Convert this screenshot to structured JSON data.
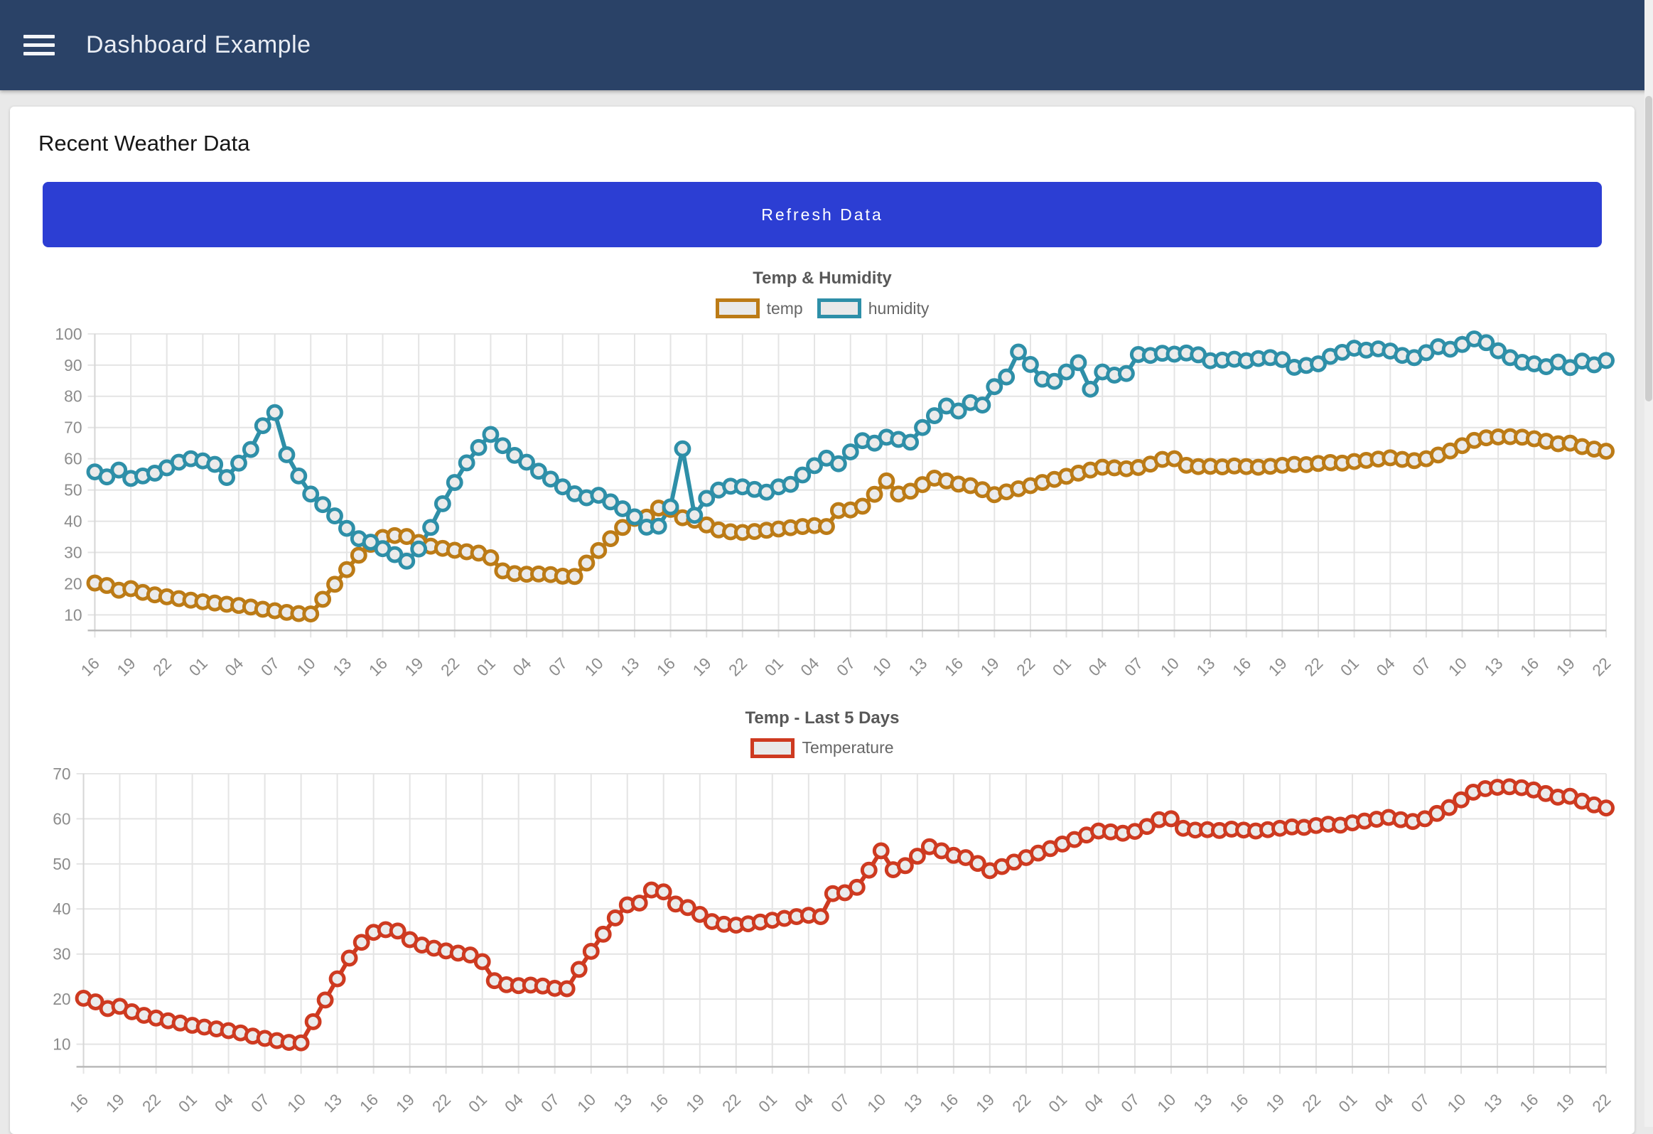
{
  "header": {
    "title": "Dashboard Example",
    "menu_icon": "hamburger-icon"
  },
  "page": {
    "heading": "Recent Weather Data",
    "refresh_button_label": "Refresh Data"
  },
  "colors": {
    "header_bg": "#2a4267",
    "button_bg": "#2c3ed3",
    "temp": "#bc7b16",
    "humidity": "#2e8fa8",
    "temperature_red": "#ce3a20",
    "grid": "#e4e4e4",
    "axis_border": "#b9b9b9",
    "point_fill": "#ebebeb",
    "title_text": "#585858",
    "axis_text": "#8c8c8c"
  },
  "chart_data": [
    {
      "type": "line",
      "title": "Temp & Humidity",
      "legend_position": "top",
      "grid": true,
      "ylim": [
        5,
        100
      ],
      "yticks": [
        10,
        20,
        30,
        40,
        50,
        60,
        70,
        80,
        90,
        100
      ],
      "x_tick_every": 3,
      "x_tick_labels": [
        "16",
        "19",
        "22",
        "01",
        "04",
        "07",
        "10",
        "13",
        "16",
        "19",
        "22",
        "01",
        "04",
        "07",
        "10",
        "13",
        "16",
        "19",
        "22",
        "01",
        "04",
        "07",
        "10",
        "13",
        "16",
        "19",
        "22",
        "01",
        "04",
        "07",
        "10",
        "13",
        "16",
        "19",
        "22",
        "01",
        "04",
        "07",
        "10",
        "13",
        "16",
        "19",
        "22"
      ],
      "legend": [
        {
          "label": "temp",
          "color": "#bc7b16"
        },
        {
          "label": "humidity",
          "color": "#2e8fa8"
        }
      ],
      "series": [
        {
          "name": "temp",
          "color": "#bc7b16",
          "values": [
            20.2,
            19.4,
            17.9,
            18.4,
            17.2,
            16.4,
            15.8,
            15.2,
            14.7,
            14.2,
            13.8,
            13.4,
            13.0,
            12.5,
            11.8,
            11.3,
            10.8,
            10.4,
            10.3,
            15.0,
            19.8,
            24.5,
            29.1,
            32.6,
            34.8,
            35.4,
            35.1,
            33.2,
            32.0,
            31.3,
            30.7,
            30.2,
            29.8,
            28.3,
            24.1,
            23.2,
            23.0,
            23.1,
            22.9,
            22.4,
            22.3,
            26.6,
            30.6,
            34.4,
            38.0,
            40.9,
            41.3,
            44.2,
            43.8,
            41.1,
            40.3,
            38.8,
            37.2,
            36.6,
            36.4,
            36.7,
            37.1,
            37.5,
            37.9,
            38.3,
            38.6,
            38.3,
            43.4,
            43.6,
            44.8,
            48.6,
            52.9,
            48.7,
            49.6,
            51.7,
            53.8,
            52.9,
            51.9,
            51.4,
            50.1,
            48.5,
            49.4,
            50.4,
            51.4,
            52.4,
            53.4,
            54.4,
            55.4,
            56.4,
            57.3,
            57.1,
            56.8,
            57.2,
            58.3,
            59.8,
            60.0,
            57.9,
            57.5,
            57.6,
            57.4,
            57.7,
            57.5,
            57.3,
            57.6,
            57.9,
            58.2,
            58.1,
            58.5,
            58.8,
            58.6,
            59.1,
            59.5,
            59.9,
            60.3,
            59.8,
            59.4,
            60.0,
            61.2,
            62.5,
            64.2,
            65.9,
            66.7,
            67.0,
            67.1,
            66.9,
            66.4,
            65.6,
            64.8,
            65.0,
            63.9,
            63.1,
            62.4
          ]
        },
        {
          "name": "humidity",
          "color": "#2e8fa8",
          "values": [
            55.8,
            54.2,
            56.4,
            53.7,
            54.5,
            55.4,
            57.1,
            58.9,
            60.0,
            59.3,
            58.2,
            54.0,
            58.6,
            63.0,
            70.6,
            74.8,
            61.3,
            54.5,
            48.7,
            45.3,
            41.7,
            37.7,
            34.4,
            33.3,
            31.2,
            29.3,
            27.2,
            31.1,
            38.0,
            45.6,
            52.4,
            58.7,
            63.6,
            67.8,
            64.2,
            61.1,
            58.9,
            56.0,
            53.5,
            51.0,
            48.8,
            47.5,
            48.3,
            46.2,
            44.0,
            41.4,
            38.1,
            38.4,
            44.6,
            63.2,
            41.9,
            47.3,
            50.0,
            51.2,
            51.0,
            50.2,
            49.3,
            51.0,
            51.8,
            54.8,
            57.8,
            60.2,
            58.4,
            62.2,
            65.8,
            65.0,
            66.9,
            66.2,
            65.3,
            70.0,
            73.8,
            76.9,
            75.3,
            78.0,
            77.2,
            83.1,
            86.2,
            94.2,
            90.2,
            85.5,
            84.8,
            87.8,
            90.8,
            82.3,
            87.8,
            86.8,
            87.3,
            93.4,
            93.1,
            93.8,
            93.5,
            93.9,
            93.3,
            91.4,
            91.6,
            91.9,
            91.4,
            92.1,
            92.4,
            91.8,
            89.3,
            89.9,
            90.4,
            92.8,
            94.1,
            95.4,
            94.8,
            95.2,
            94.5,
            93.1,
            92.4,
            94.0,
            95.9,
            95.1,
            96.6,
            98.4,
            97.2,
            94.6,
            92.4,
            90.9,
            90.4,
            89.5,
            91.0,
            89.2,
            91.3,
            90.1,
            91.5
          ]
        }
      ]
    },
    {
      "type": "line",
      "title": "Temp - Last 5 Days",
      "legend_position": "top",
      "grid": true,
      "ylim": [
        5,
        70
      ],
      "yticks": [
        10,
        20,
        30,
        40,
        50,
        60,
        70
      ],
      "x_tick_every": 3,
      "x_tick_labels": [
        "16",
        "19",
        "22",
        "01",
        "04",
        "07",
        "10",
        "13",
        "16",
        "19",
        "22",
        "01",
        "04",
        "07",
        "10",
        "13",
        "16",
        "19",
        "22",
        "01",
        "04",
        "07",
        "10",
        "13",
        "16",
        "19",
        "22",
        "01",
        "04",
        "07",
        "10",
        "13",
        "16",
        "19",
        "22",
        "01",
        "04",
        "07",
        "10",
        "13",
        "16",
        "19",
        "22"
      ],
      "legend": [
        {
          "label": "Temperature",
          "color": "#ce3a20"
        }
      ],
      "series": [
        {
          "name": "Temperature",
          "color": "#ce3a20",
          "values": [
            20.2,
            19.4,
            17.9,
            18.4,
            17.2,
            16.4,
            15.8,
            15.2,
            14.7,
            14.2,
            13.8,
            13.4,
            13.0,
            12.5,
            11.8,
            11.3,
            10.8,
            10.4,
            10.3,
            15.0,
            19.8,
            24.5,
            29.1,
            32.6,
            34.8,
            35.4,
            35.1,
            33.2,
            32.0,
            31.3,
            30.7,
            30.2,
            29.8,
            28.3,
            24.1,
            23.2,
            23.0,
            23.1,
            22.9,
            22.4,
            22.3,
            26.6,
            30.6,
            34.4,
            38.0,
            40.9,
            41.3,
            44.2,
            43.8,
            41.1,
            40.3,
            38.8,
            37.2,
            36.6,
            36.4,
            36.7,
            37.1,
            37.5,
            37.9,
            38.3,
            38.6,
            38.3,
            43.4,
            43.6,
            44.8,
            48.6,
            52.9,
            48.7,
            49.6,
            51.7,
            53.8,
            52.9,
            51.9,
            51.4,
            50.1,
            48.5,
            49.4,
            50.4,
            51.4,
            52.4,
            53.4,
            54.4,
            55.4,
            56.4,
            57.3,
            57.1,
            56.8,
            57.2,
            58.3,
            59.8,
            60.0,
            57.9,
            57.5,
            57.6,
            57.4,
            57.7,
            57.5,
            57.3,
            57.6,
            57.9,
            58.2,
            58.1,
            58.5,
            58.8,
            58.6,
            59.1,
            59.5,
            59.9,
            60.3,
            59.8,
            59.4,
            60.0,
            61.2,
            62.5,
            64.2,
            65.9,
            66.7,
            67.0,
            67.1,
            66.9,
            66.4,
            65.6,
            64.8,
            65.0,
            63.9,
            63.1,
            62.4
          ]
        }
      ]
    }
  ]
}
